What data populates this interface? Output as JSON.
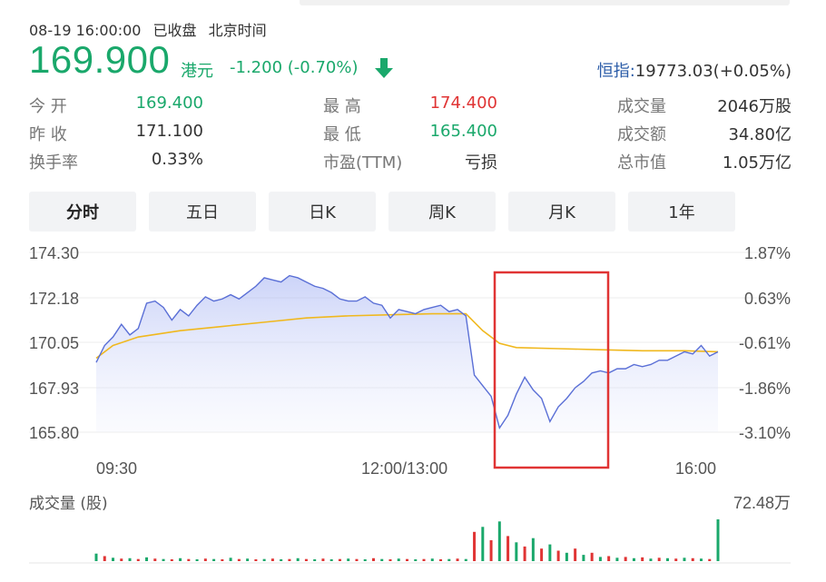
{
  "header": {
    "datetime": "08-19 16:00:00",
    "status": "已收盘",
    "timezone": "北京时间",
    "price": "169.900",
    "currency": "港元",
    "change": "-1.200 (-0.70%)",
    "direction_icon": "down-arrow-icon",
    "index_label": "恒指:",
    "index_value": "19773.03(+0.05%)"
  },
  "stats": {
    "open_label": "今  开",
    "open_value": "169.400",
    "prev_label": "昨  收",
    "prev_value": "171.100",
    "turnover_label": "换手率",
    "turnover_value": "0.33%",
    "high_label": "最  高",
    "high_value": "174.400",
    "low_label": "最  低",
    "low_value": "165.400",
    "pe_label": "市盈(TTM)",
    "pe_value": "亏损",
    "volume_label": "成交量",
    "volume_value": "2046万股",
    "amount_label": "成交额",
    "amount_value": "34.80亿",
    "mcap_label": "总市值",
    "mcap_value": "1.05万亿"
  },
  "tabs": [
    "分时",
    "五日",
    "日K",
    "周K",
    "月K",
    "1年"
  ],
  "active_tab": 0,
  "colors": {
    "up": "#e03434",
    "down": "#1aa86b",
    "price_line": "#5a6fd6",
    "avg_line": "#f0b81e",
    "highlight_box": "#e03434"
  },
  "chart_data": {
    "type": "line",
    "y_ticks_left": [
      "174.30",
      "172.18",
      "170.05",
      "167.93",
      "165.80"
    ],
    "y_ticks_right": [
      "1.87%",
      "0.63%",
      "-0.61%",
      "-1.86%",
      "-3.10%"
    ],
    "x_ticks": [
      "09:30",
      "12:00/13:00",
      "16:00"
    ],
    "ylim": [
      165.8,
      174.3
    ],
    "volume_label": "成交量 (股)",
    "volume_max_label": "72.48万",
    "price_series": [
      [
        0,
        169.1
      ],
      [
        1,
        169.9
      ],
      [
        2,
        170.3
      ],
      [
        3,
        170.9
      ],
      [
        4,
        170.4
      ],
      [
        5,
        170.7
      ],
      [
        6,
        171.9
      ],
      [
        7,
        172.0
      ],
      [
        8,
        171.7
      ],
      [
        9,
        171.1
      ],
      [
        10,
        171.6
      ],
      [
        11,
        171.3
      ],
      [
        12,
        171.8
      ],
      [
        13,
        172.2
      ],
      [
        14,
        172.0
      ],
      [
        15,
        172.1
      ],
      [
        16,
        172.3
      ],
      [
        17,
        172.1
      ],
      [
        18,
        172.4
      ],
      [
        19,
        172.7
      ],
      [
        20,
        173.1
      ],
      [
        21,
        173.0
      ],
      [
        22,
        172.9
      ],
      [
        23,
        173.2
      ],
      [
        24,
        173.1
      ],
      [
        25,
        172.9
      ],
      [
        26,
        172.7
      ],
      [
        27,
        172.6
      ],
      [
        28,
        172.4
      ],
      [
        29,
        172.1
      ],
      [
        30,
        172.0
      ],
      [
        31,
        172.0
      ],
      [
        32,
        172.2
      ],
      [
        33,
        171.9
      ],
      [
        34,
        171.8
      ],
      [
        35,
        171.2
      ],
      [
        36,
        171.6
      ],
      [
        37,
        171.5
      ],
      [
        38,
        171.4
      ],
      [
        39,
        171.6
      ],
      [
        40,
        171.7
      ],
      [
        41,
        171.8
      ],
      [
        42,
        171.5
      ],
      [
        43,
        171.6
      ],
      [
        44,
        171.3
      ],
      [
        45,
        168.5
      ],
      [
        46,
        168.0
      ],
      [
        47,
        167.5
      ],
      [
        48,
        166.0
      ],
      [
        49,
        166.6
      ],
      [
        50,
        167.6
      ],
      [
        51,
        168.4
      ],
      [
        52,
        167.8
      ],
      [
        53,
        167.4
      ],
      [
        54,
        166.3
      ],
      [
        55,
        167.0
      ],
      [
        56,
        167.4
      ],
      [
        57,
        167.9
      ],
      [
        58,
        168.2
      ],
      [
        59,
        168.6
      ],
      [
        60,
        168.7
      ],
      [
        61,
        168.6
      ],
      [
        62,
        168.8
      ],
      [
        63,
        168.8
      ],
      [
        64,
        169.0
      ],
      [
        65,
        168.9
      ],
      [
        66,
        169.0
      ],
      [
        67,
        169.2
      ],
      [
        68,
        169.2
      ],
      [
        69,
        169.4
      ],
      [
        70,
        169.6
      ],
      [
        71,
        169.5
      ],
      [
        72,
        169.9
      ],
      [
        73,
        169.4
      ],
      [
        74,
        169.6
      ]
    ],
    "avg_series": [
      [
        0,
        169.3
      ],
      [
        2,
        169.9
      ],
      [
        5,
        170.3
      ],
      [
        10,
        170.6
      ],
      [
        15,
        170.8
      ],
      [
        20,
        171.0
      ],
      [
        25,
        171.2
      ],
      [
        30,
        171.3
      ],
      [
        35,
        171.35
      ],
      [
        40,
        171.4
      ],
      [
        44,
        171.4
      ],
      [
        46,
        170.6
      ],
      [
        48,
        170.0
      ],
      [
        50,
        169.8
      ],
      [
        55,
        169.75
      ],
      [
        60,
        169.7
      ],
      [
        65,
        169.65
      ],
      [
        70,
        169.65
      ],
      [
        74,
        169.6
      ]
    ],
    "volume": [
      0.18,
      0.12,
      0.08,
      0.06,
      0.07,
      0.05,
      0.09,
      0.06,
      0.05,
      0.04,
      0.07,
      0.05,
      0.04,
      0.06,
      0.05,
      0.04,
      0.08,
      0.05,
      0.06,
      0.04,
      0.05,
      0.06,
      0.04,
      0.05,
      0.07,
      0.05,
      0.04,
      0.06,
      0.04,
      0.05,
      0.06,
      0.05,
      0.04,
      0.07,
      0.05,
      0.04,
      0.06,
      0.05,
      0.04,
      0.05,
      0.06,
      0.04,
      0.05,
      0.06,
      0.05,
      0.7,
      0.82,
      0.5,
      0.95,
      0.6,
      0.45,
      0.35,
      0.55,
      0.3,
      0.4,
      0.25,
      0.2,
      0.3,
      0.15,
      0.2,
      0.1,
      0.12,
      0.08,
      0.1,
      0.07,
      0.09,
      0.06,
      0.08,
      0.07,
      0.06,
      0.08,
      0.07,
      0.06,
      0.05,
      1.0
    ],
    "volume_up": [
      0,
      1,
      0,
      1,
      0,
      1,
      0,
      1,
      0,
      1,
      0,
      1,
      0,
      1,
      0,
      1,
      0,
      1,
      0,
      1,
      0,
      1,
      0,
      1,
      0,
      1,
      0,
      1,
      0,
      1,
      0,
      1,
      0,
      1,
      0,
      1,
      0,
      1,
      0,
      1,
      0,
      1,
      0,
      1,
      0,
      1,
      0,
      1,
      0,
      1,
      0,
      1,
      0,
      1,
      0,
      1,
      0,
      1,
      0,
      1,
      0,
      1,
      0,
      1,
      0,
      1,
      0,
      1,
      0,
      1,
      0,
      1,
      0,
      1,
      0
    ]
  }
}
